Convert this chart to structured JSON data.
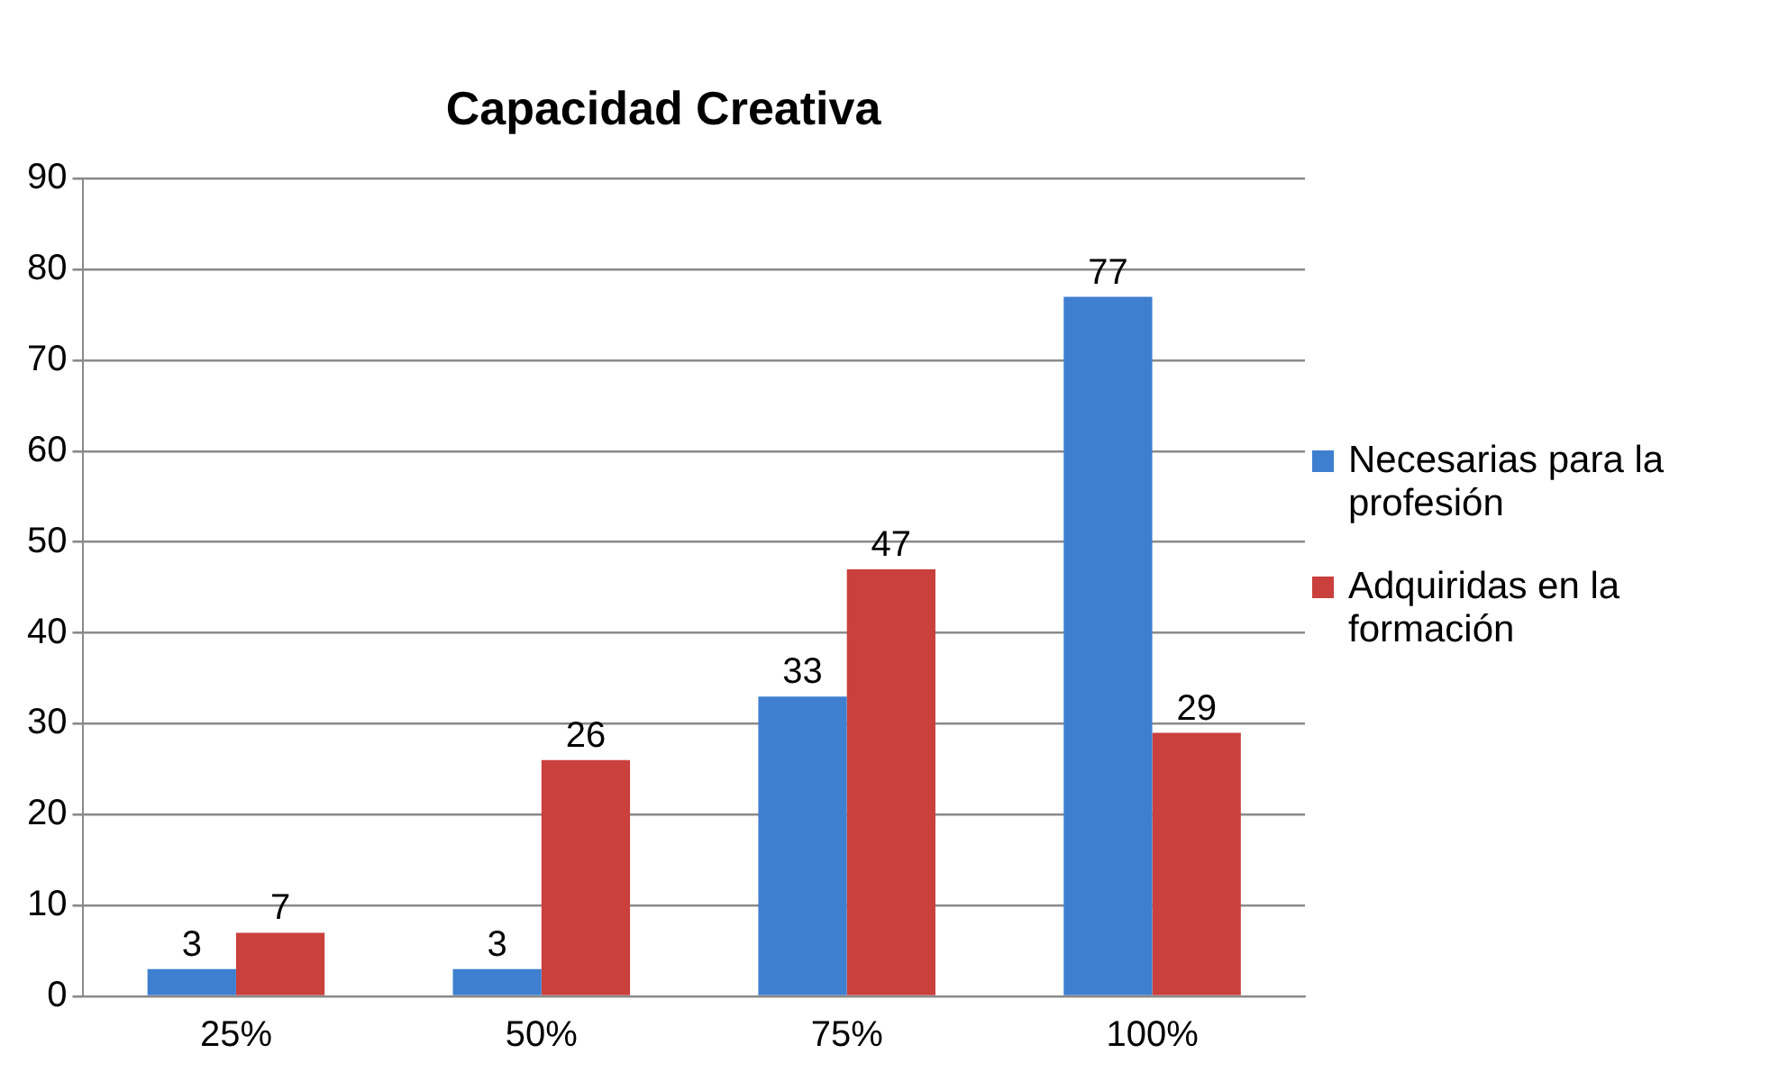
{
  "chart_data": {
    "type": "bar",
    "title": "Capacidad Creativa",
    "categories": [
      "25%",
      "50%",
      "75%",
      "100%"
    ],
    "series": [
      {
        "name": "Necesarias para la profesión",
        "color": "#3f7fd0",
        "values": [
          3,
          3,
          33,
          77
        ]
      },
      {
        "name": "Adquiridas en la formación",
        "color": "#c9403d",
        "values": [
          7,
          26,
          47,
          29
        ]
      }
    ],
    "ylim": [
      0,
      90
    ],
    "yticks": [
      0,
      10,
      20,
      30,
      40,
      50,
      60,
      70,
      80,
      90
    ],
    "grid": "y",
    "legend": "right",
    "data_labels": true
  }
}
